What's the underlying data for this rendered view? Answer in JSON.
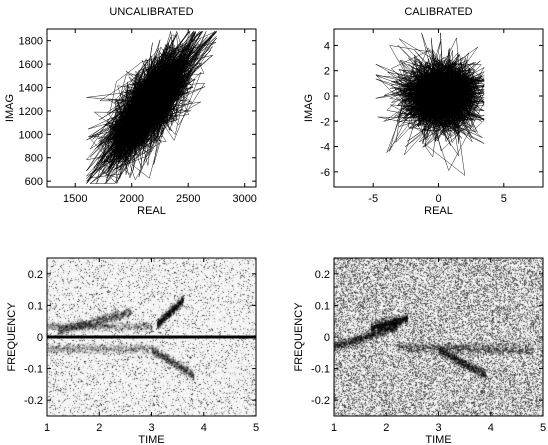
{
  "chart_data": [
    {
      "type": "scatter",
      "title": "UNCALIBRATED",
      "xlabel": "REAL",
      "ylabel": "IMAG",
      "xlim": [
        1250,
        3100
      ],
      "ylim": [
        550,
        1900
      ],
      "xticks": [
        1500,
        2000,
        2500,
        3000
      ],
      "yticks": [
        600,
        800,
        1000,
        1200,
        1400,
        1600,
        1800
      ],
      "grid": false,
      "cloud": {
        "center": [
          2150,
          1250
        ],
        "spread_major": 300,
        "spread_minor": 110,
        "angle_deg": 55,
        "min": [
          1600,
          580
        ],
        "max": [
          2750,
          1880
        ]
      },
      "color": "#000000"
    },
    {
      "type": "scatter",
      "title": "CALIBRATED",
      "xlabel": "REAL",
      "ylabel": "IMAG",
      "xlim": [
        -8,
        8
      ],
      "ylim": [
        -7.2,
        5.3
      ],
      "xticks": [
        -5,
        0,
        5
      ],
      "yticks": [
        -6,
        -4,
        -2,
        0,
        2,
        4
      ],
      "grid": false,
      "cloud": {
        "center": [
          0.2,
          0.0
        ],
        "spread_major": 1.5,
        "spread_minor": 1.4,
        "angle_deg": 0,
        "min": [
          -4.8,
          -6.8
        ],
        "max": [
          3.5,
          5.0
        ]
      },
      "color": "#000000"
    },
    {
      "type": "heatmap",
      "xlabel": "TIME",
      "ylabel": "FREQUENCY",
      "xlim": [
        1,
        5
      ],
      "ylim": [
        -0.25,
        0.25
      ],
      "xticks": [
        1,
        2,
        3,
        4,
        5
      ],
      "yticks": [
        -0.2,
        -0.1,
        0,
        0.1,
        0.2
      ],
      "background_noise": 0.12,
      "dc_line": true,
      "features": [
        {
          "t0": 1.0,
          "t1": 3.0,
          "f0": 0.035,
          "f1": 0.035,
          "intensity": 0.35
        },
        {
          "t0": 1.2,
          "t1": 2.6,
          "f0": 0.02,
          "f1": 0.08,
          "intensity": 0.45
        },
        {
          "t0": 3.1,
          "t1": 3.6,
          "f0": 0.04,
          "f1": 0.12,
          "intensity": 0.45
        },
        {
          "t0": 1.0,
          "t1": 3.0,
          "f0": -0.035,
          "f1": -0.035,
          "intensity": 0.3
        },
        {
          "t0": 3.0,
          "t1": 3.8,
          "f0": -0.04,
          "f1": -0.12,
          "intensity": 0.35
        }
      ]
    },
    {
      "type": "heatmap",
      "xlabel": "TIME",
      "ylabel": "FREQUENCY",
      "xlim": [
        1,
        5
      ],
      "ylim": [
        -0.25,
        0.25
      ],
      "xticks": [
        1,
        2,
        3,
        4,
        5
      ],
      "yticks": [
        -0.2,
        -0.1,
        0,
        0.1,
        0.2
      ],
      "background_noise": 0.45,
      "dc_line": false,
      "features": [
        {
          "t0": 1.0,
          "t1": 2.2,
          "f0": -0.03,
          "f1": 0.035,
          "intensity": 0.6
        },
        {
          "t0": 1.7,
          "t1": 2.4,
          "f0": 0.03,
          "f1": 0.06,
          "intensity": 0.6
        },
        {
          "t0": 2.2,
          "t1": 4.8,
          "f0": -0.03,
          "f1": -0.04,
          "intensity": 0.55
        },
        {
          "t0": 3.0,
          "t1": 3.9,
          "f0": -0.04,
          "f1": -0.12,
          "intensity": 0.5
        }
      ]
    }
  ]
}
